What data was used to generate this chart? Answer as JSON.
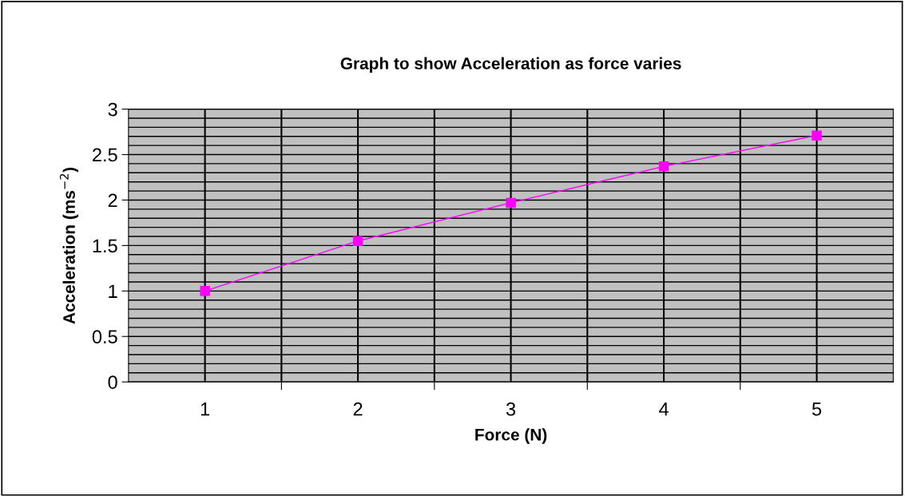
{
  "chart_data": {
    "type": "line",
    "title": "Graph to show Acceleration as force varies",
    "xlabel": "Force (N)",
    "ylabel": "Acceleration (ms$^{−2}$)",
    "categories": [
      "1",
      "2",
      "3",
      "4",
      "5"
    ],
    "series": [
      {
        "color": "#ff00ff",
        "values": [
          1.0,
          1.55,
          1.97,
          2.37,
          2.71
        ]
      }
    ],
    "ylim": [
      0,
      3
    ],
    "yticks": [
      0,
      0.5,
      1,
      1.5,
      2,
      2.5,
      3
    ],
    "grid": true,
    "marker": "square",
    "line_style": "solid",
    "legend": false
  }
}
